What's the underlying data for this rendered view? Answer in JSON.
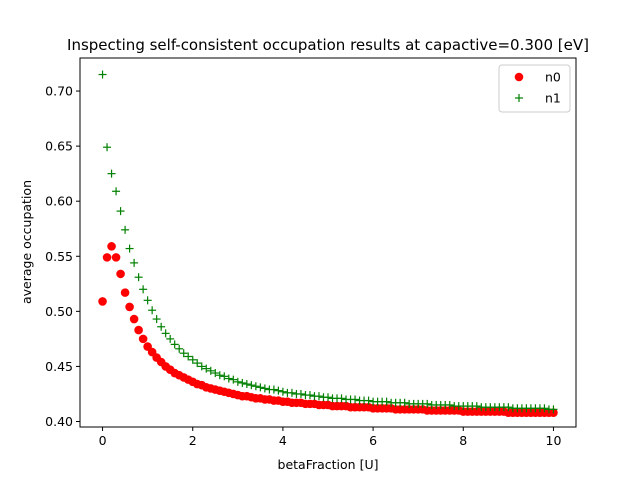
{
  "chart_data": {
    "type": "scatter",
    "title": "Inspecting self-consistent occupation results at capactive=0.300 [eV]",
    "xlabel": "betaFraction [U]",
    "ylabel": "average occupation",
    "xlim": [
      -0.5,
      10.5
    ],
    "ylim": [
      0.395,
      0.73
    ],
    "xticks": [
      0,
      2,
      4,
      6,
      8,
      10
    ],
    "yticks": [
      0.4,
      0.45,
      0.5,
      0.55,
      0.6,
      0.65,
      0.7
    ],
    "xtick_labels": [
      "0",
      "2",
      "4",
      "6",
      "8",
      "10"
    ],
    "ytick_labels": [
      "0.40",
      "0.45",
      "0.50",
      "0.55",
      "0.60",
      "0.65",
      "0.70"
    ],
    "grid": false,
    "legend_position": "top-right",
    "series": [
      {
        "name": "n0",
        "marker": "circle",
        "color": "#ff0000",
        "x": [
          0.0,
          0.1,
          0.2,
          0.3,
          0.4,
          0.5,
          0.6,
          0.7,
          0.8,
          0.9,
          1.0,
          1.1,
          1.2,
          1.3,
          1.4,
          1.5,
          1.6,
          1.7,
          1.8,
          1.9,
          2.0,
          2.1,
          2.2,
          2.3,
          2.4,
          2.5,
          2.6,
          2.7,
          2.8,
          2.9,
          3.0,
          3.1,
          3.2,
          3.3,
          3.4,
          3.5,
          3.6,
          3.7,
          3.8,
          3.9,
          4.0,
          4.1,
          4.2,
          4.3,
          4.4,
          4.5,
          4.6,
          4.7,
          4.8,
          4.9,
          5.0,
          5.1,
          5.2,
          5.3,
          5.4,
          5.5,
          5.6,
          5.7,
          5.8,
          5.9,
          6.0,
          6.1,
          6.2,
          6.3,
          6.4,
          6.5,
          6.6,
          6.7,
          6.8,
          6.9,
          7.0,
          7.1,
          7.2,
          7.3,
          7.4,
          7.5,
          7.6,
          7.7,
          7.8,
          7.9,
          8.0,
          8.1,
          8.2,
          8.3,
          8.4,
          8.5,
          8.6,
          8.7,
          8.8,
          8.9,
          9.0,
          9.1,
          9.2,
          9.3,
          9.4,
          9.5,
          9.6,
          9.7,
          9.8,
          9.9,
          10.0
        ],
        "y": [
          0.509,
          0.549,
          0.559,
          0.549,
          0.534,
          0.517,
          0.504,
          0.493,
          0.483,
          0.475,
          0.468,
          0.463,
          0.458,
          0.454,
          0.45,
          0.447,
          0.444,
          0.442,
          0.44,
          0.438,
          0.436,
          0.434,
          0.433,
          0.431,
          0.43,
          0.429,
          0.428,
          0.427,
          0.426,
          0.425,
          0.424,
          0.423,
          0.423,
          0.422,
          0.421,
          0.421,
          0.42,
          0.42,
          0.419,
          0.419,
          0.418,
          0.418,
          0.417,
          0.417,
          0.417,
          0.416,
          0.416,
          0.416,
          0.415,
          0.415,
          0.415,
          0.414,
          0.414,
          0.414,
          0.414,
          0.413,
          0.413,
          0.413,
          0.413,
          0.413,
          0.412,
          0.412,
          0.412,
          0.412,
          0.412,
          0.411,
          0.411,
          0.411,
          0.411,
          0.411,
          0.411,
          0.411,
          0.41,
          0.41,
          0.41,
          0.41,
          0.41,
          0.41,
          0.41,
          0.41,
          0.409,
          0.409,
          0.409,
          0.409,
          0.409,
          0.409,
          0.409,
          0.409,
          0.409,
          0.409,
          0.408,
          0.408,
          0.408,
          0.408,
          0.408,
          0.408,
          0.408,
          0.408,
          0.408,
          0.408,
          0.408
        ]
      },
      {
        "name": "n1",
        "marker": "plus",
        "color": "#008000",
        "x": [
          0.0,
          0.1,
          0.2,
          0.3,
          0.4,
          0.5,
          0.6,
          0.7,
          0.8,
          0.9,
          1.0,
          1.1,
          1.2,
          1.3,
          1.4,
          1.5,
          1.6,
          1.7,
          1.8,
          1.9,
          2.0,
          2.1,
          2.2,
          2.3,
          2.4,
          2.5,
          2.6,
          2.7,
          2.8,
          2.9,
          3.0,
          3.1,
          3.2,
          3.3,
          3.4,
          3.5,
          3.6,
          3.7,
          3.8,
          3.9,
          4.0,
          4.1,
          4.2,
          4.3,
          4.4,
          4.5,
          4.6,
          4.7,
          4.8,
          4.9,
          5.0,
          5.1,
          5.2,
          5.3,
          5.4,
          5.5,
          5.6,
          5.7,
          5.8,
          5.9,
          6.0,
          6.1,
          6.2,
          6.3,
          6.4,
          6.5,
          6.6,
          6.7,
          6.8,
          6.9,
          7.0,
          7.1,
          7.2,
          7.3,
          7.4,
          7.5,
          7.6,
          7.7,
          7.8,
          7.9,
          8.0,
          8.1,
          8.2,
          8.3,
          8.4,
          8.5,
          8.6,
          8.7,
          8.8,
          8.9,
          9.0,
          9.1,
          9.2,
          9.3,
          9.4,
          9.5,
          9.6,
          9.7,
          9.8,
          9.9,
          10.0
        ],
        "y": [
          0.715,
          0.649,
          0.625,
          0.609,
          0.591,
          0.574,
          0.557,
          0.544,
          0.531,
          0.52,
          0.51,
          0.501,
          0.493,
          0.486,
          0.48,
          0.475,
          0.47,
          0.466,
          0.462,
          0.459,
          0.456,
          0.453,
          0.45,
          0.448,
          0.446,
          0.444,
          0.442,
          0.441,
          0.439,
          0.438,
          0.436,
          0.435,
          0.434,
          0.433,
          0.432,
          0.431,
          0.43,
          0.429,
          0.429,
          0.428,
          0.427,
          0.426,
          0.426,
          0.425,
          0.425,
          0.424,
          0.424,
          0.423,
          0.423,
          0.422,
          0.422,
          0.421,
          0.421,
          0.421,
          0.42,
          0.42,
          0.42,
          0.419,
          0.419,
          0.419,
          0.418,
          0.418,
          0.418,
          0.418,
          0.417,
          0.417,
          0.417,
          0.417,
          0.416,
          0.416,
          0.416,
          0.416,
          0.416,
          0.415,
          0.415,
          0.415,
          0.415,
          0.415,
          0.414,
          0.414,
          0.414,
          0.414,
          0.414,
          0.414,
          0.413,
          0.413,
          0.413,
          0.413,
          0.413,
          0.413,
          0.413,
          0.412,
          0.412,
          0.412,
          0.412,
          0.412,
          0.412,
          0.412,
          0.412,
          0.411,
          0.411
        ]
      }
    ]
  }
}
